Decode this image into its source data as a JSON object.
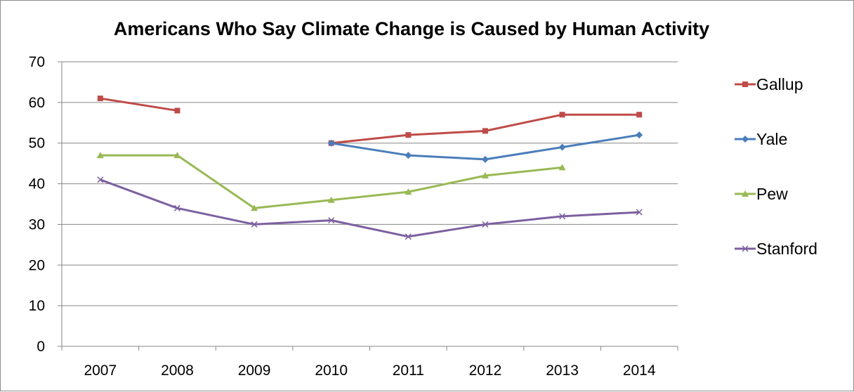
{
  "chart_data": {
    "type": "line",
    "title": "Americans Who Say Climate Change is Caused by Human Activity",
    "xlabel": "",
    "ylabel": "",
    "categories": [
      "2007",
      "2008",
      "2009",
      "2010",
      "2011",
      "2012",
      "2013",
      "2014"
    ],
    "ylim": [
      0,
      70
    ],
    "yticks": [
      "0",
      "10",
      "20",
      "30",
      "40",
      "50",
      "60",
      "70"
    ],
    "grid": "horizontal",
    "legend_position": "right",
    "series": [
      {
        "name": "Gallup",
        "color": "#be4b48",
        "marker": "square",
        "values": [
          61,
          58,
          null,
          50,
          52,
          53,
          57,
          57
        ]
      },
      {
        "name": "Yale",
        "color": "#4a7ebb",
        "marker": "diamond",
        "values": [
          null,
          null,
          null,
          50,
          47,
          46,
          49,
          52
        ]
      },
      {
        "name": "Pew",
        "color": "#98b954",
        "marker": "triangle",
        "values": [
          47,
          47,
          34,
          36,
          38,
          42,
          44,
          null
        ]
      },
      {
        "name": "Stanford",
        "color": "#7d60a0",
        "marker": "x",
        "values": [
          41,
          34,
          30,
          31,
          27,
          30,
          32,
          33
        ]
      }
    ]
  }
}
